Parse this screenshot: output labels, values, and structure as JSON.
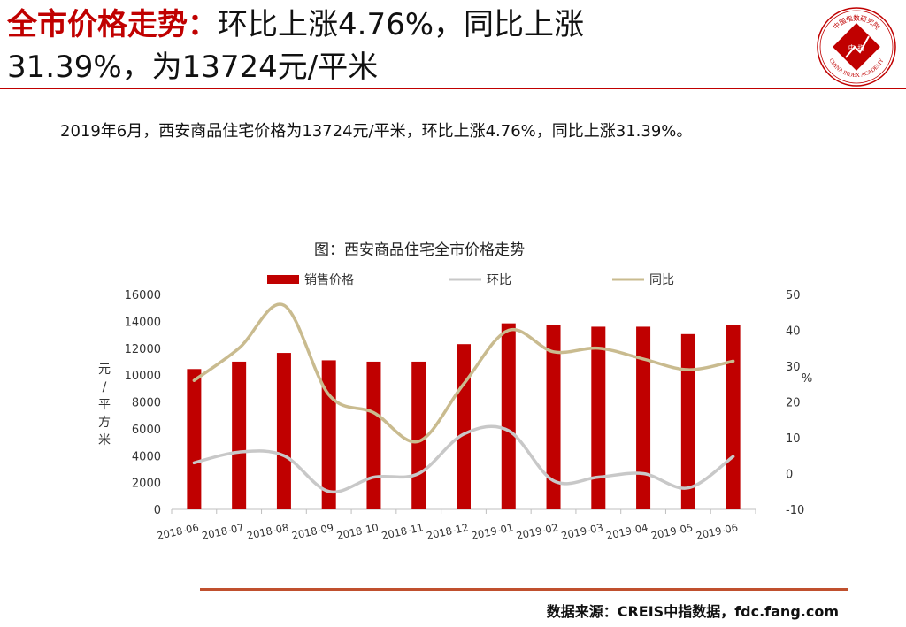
{
  "header": {
    "title_lead": "全市价格走势：",
    "title_line1": "环比上涨4.76%，同比上涨",
    "title_line2": "31.39%，为13724元/平米"
  },
  "logo": {
    "icon": "china-index-academy-seal-icon",
    "ring_text": "CHINA INDEX ACADEMY",
    "top_text": "中国指数研究院",
    "center_text": "中 指",
    "color": "#c00000"
  },
  "summary": "2019年6月，西安商品住宅价格为13724元/平米，环比上涨4.76%，同比上涨31.39%。",
  "chart_data": {
    "type": "bar",
    "title": "图：西安商品住宅全市价格走势",
    "categories": [
      "2018-06",
      "2018-07",
      "2018-08",
      "2018-09",
      "2018-10",
      "2018-11",
      "2018-12",
      "2019-01",
      "2019-02",
      "2019-03",
      "2019-04",
      "2019-05",
      "2019-06"
    ],
    "series": [
      {
        "name": "销售价格",
        "type": "bar",
        "axis": "left",
        "color": "#c00000",
        "values": [
          10450,
          11000,
          11650,
          11100,
          11000,
          11000,
          12300,
          13850,
          13700,
          13600,
          13600,
          13050,
          13724
        ]
      },
      {
        "name": "环比",
        "type": "line",
        "axis": "right",
        "color": "#c8c8c8",
        "values": [
          3,
          6,
          5,
          -5,
          -1,
          0,
          11,
          12,
          -2,
          -1,
          0,
          -4,
          4.76
        ]
      },
      {
        "name": "同比",
        "type": "line",
        "axis": "right",
        "color": "#c9bb8f",
        "values": [
          26,
          35,
          47,
          22,
          17,
          9,
          25,
          40,
          34,
          35,
          32,
          29,
          31.39
        ]
      }
    ],
    "ylabel": "元/平方米",
    "ylim": [
      0,
      16000
    ],
    "yticks": [
      "0",
      "2000",
      "4000",
      "6000",
      "8000",
      "10000",
      "12000",
      "14000",
      "16000"
    ],
    "y2label": "%",
    "y2lim": [
      -10,
      50
    ],
    "y2ticks": [
      "-10",
      "0",
      "10",
      "20",
      "30",
      "40",
      "50"
    ],
    "grid": false,
    "legend_position": "top"
  },
  "source": "数据来源：CREIS中指数据，fdc.fang.com"
}
